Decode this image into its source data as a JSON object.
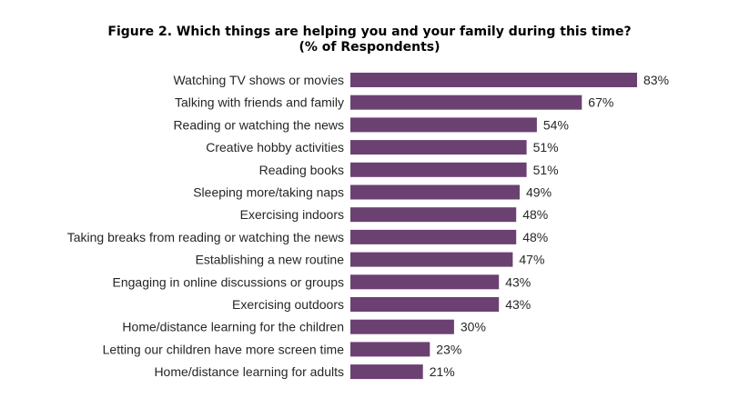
{
  "chart_data": {
    "type": "bar",
    "orientation": "horizontal",
    "title": "Figure 2. Which things are helping you and your family during this time?",
    "subtitle": "(% of Respondents)",
    "categories": [
      "Watching TV shows or movies",
      "Talking with friends and family",
      "Reading or watching the news",
      "Creative hobby activities",
      "Reading books",
      "Sleeping more/taking naps",
      "Exercising indoors",
      "Taking breaks from reading or watching the news",
      "Establishing a new routine",
      "Engaging in online discussions or groups",
      "Exercising outdoors",
      "Home/distance learning for the children",
      "Letting our children have more screen time",
      "Home/distance learning for adults"
    ],
    "values": [
      83,
      67,
      54,
      51,
      51,
      49,
      48,
      48,
      47,
      43,
      43,
      30,
      23,
      21
    ],
    "value_labels": [
      "83%",
      "67%",
      "54%",
      "51%",
      "51%",
      "49%",
      "48%",
      "48%",
      "47%",
      "43%",
      "43%",
      "30%",
      "23%",
      "21%"
    ],
    "xlim": [
      0,
      83
    ],
    "grid": false,
    "legend": "none",
    "bar_color": "#6b4172"
  }
}
